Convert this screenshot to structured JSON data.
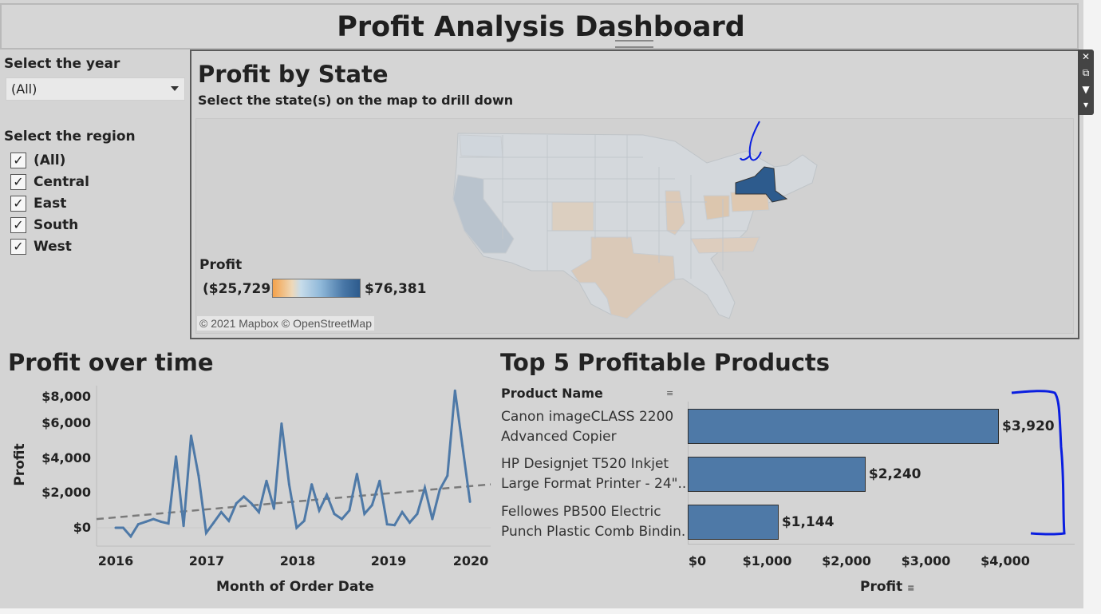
{
  "dashboard": {
    "title": "Profit Analysis Dashboard"
  },
  "filters": {
    "year_label": "Select the year",
    "year_value": "(All)",
    "region_label": "Select the region",
    "regions": [
      {
        "label": "(All)",
        "checked": true
      },
      {
        "label": "Central",
        "checked": true
      },
      {
        "label": "East",
        "checked": true
      },
      {
        "label": "South",
        "checked": true
      },
      {
        "label": "West",
        "checked": true
      }
    ]
  },
  "map": {
    "title": "Profit by State",
    "subtitle": "Select the state(s) on the map to drill down",
    "attribution": "© 2021 Mapbox © OpenStreetMap",
    "legend_title": "Profit",
    "legend_min": "($25,729)",
    "legend_max": "$76,381",
    "highlighted_state": "New York"
  },
  "toolbar": {
    "icons": [
      "close-icon",
      "popout-icon",
      "filter-icon",
      "more-icon"
    ],
    "glyphs": [
      "✕",
      "⧉",
      "▼",
      "▾"
    ]
  },
  "colors": {
    "bar": "#4e79a7",
    "line": "#4e79a7",
    "trend": "#7a7a7a",
    "annotation": "#0a1ee0",
    "selected_state": "#2d5b8d"
  },
  "chart_data": [
    {
      "type": "line",
      "title": "Profit over time",
      "xlabel": "Month of Order Date",
      "ylabel": "Profit",
      "x_ticks": [
        "2016",
        "2017",
        "2018",
        "2019",
        "2020"
      ],
      "y_ticks": [
        "$8,000",
        "$6,000",
        "$4,000",
        "$2,000",
        "$0"
      ],
      "ylim": [
        -600,
        8500
      ],
      "x_start": "2016-01",
      "series": [
        {
          "values": [
            0,
            0,
            -500,
            200,
            350,
            500,
            350,
            250,
            4100,
            100,
            5300,
            3000,
            -300,
            300,
            900,
            400,
            1400,
            1800,
            1400,
            900,
            2700,
            1100,
            6000,
            2500,
            0,
            400,
            2500,
            1000,
            1900,
            800,
            500,
            1000,
            3100,
            800,
            1300,
            2700,
            200,
            150,
            900,
            300,
            800,
            2300,
            500,
            2200,
            3000,
            7900,
            4700,
            1500
          ]
        }
      ],
      "trend_line": {
        "start": 500,
        "end": 2500
      },
      "grid": false
    },
    {
      "type": "bar",
      "orientation": "horizontal",
      "title": "Top 5 Profitable Products",
      "column_header": "Product Name",
      "xlabel": "Profit",
      "categories": [
        "Canon imageCLASS 2200 Advanced Copier",
        "HP Designjet T520 Inkjet Large Format Printer - 24\"..",
        "Fellowes PB500 Electric Punch Plastic Comb Bindin.."
      ],
      "category_lines": [
        [
          "Canon imageCLASS 2200",
          "Advanced Copier"
        ],
        [
          "HP Designjet T520 Inkjet",
          "Large Format Printer - 24\".."
        ],
        [
          "Fellowes PB500 Electric",
          "Punch Plastic Comb Bindin.."
        ]
      ],
      "values": [
        3920,
        2240,
        1144
      ],
      "value_labels": [
        "$3,920",
        "$2,240",
        "$1,144"
      ],
      "x_ticks": [
        "$0",
        "$1,000",
        "$2,000",
        "$3,000",
        "$4,000"
      ],
      "xlim": [
        0,
        4000
      ]
    }
  ]
}
